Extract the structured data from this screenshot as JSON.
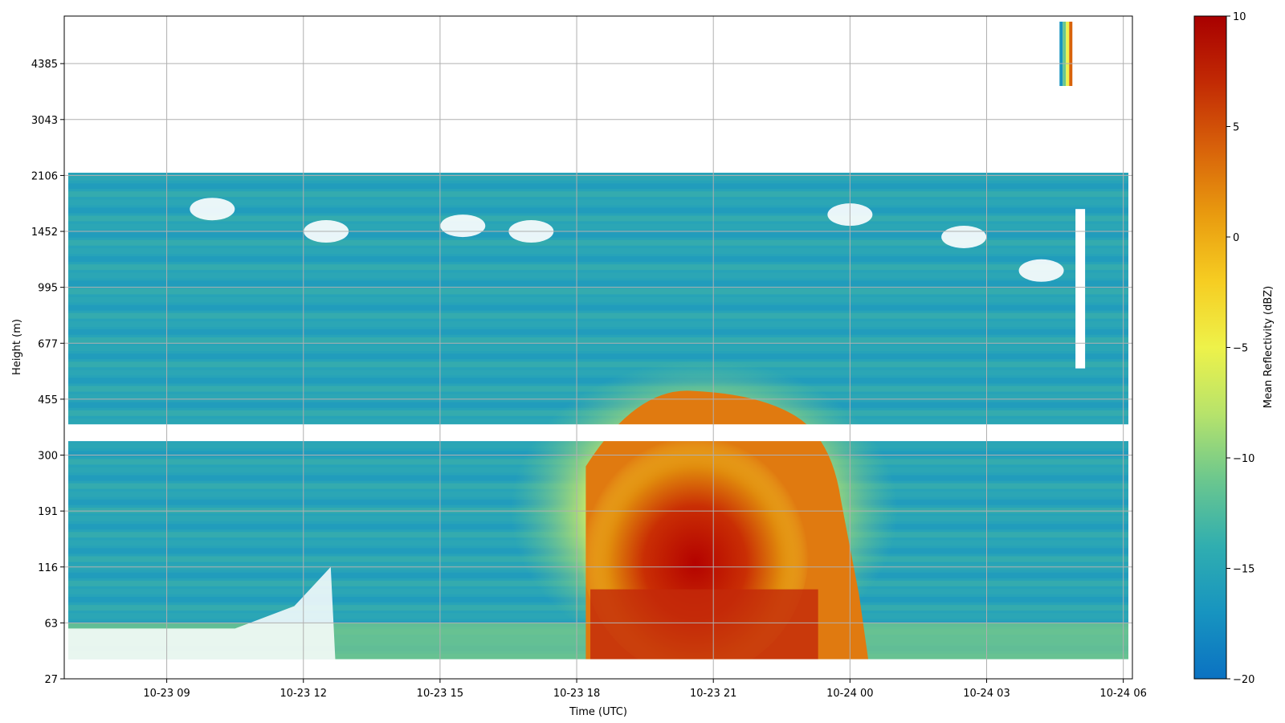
{
  "chart_data": {
    "type": "heatmap",
    "title": "",
    "xlabel": "Time (UTC)",
    "ylabel": "Height (m)",
    "x_ticks": [
      "10-23 09",
      "10-23 12",
      "10-23 15",
      "10-23 18",
      "10-23 21",
      "10-24 00",
      "10-24 03",
      "10-24 06"
    ],
    "y_ticks": [
      "27",
      "63",
      "116",
      "191",
      "300",
      "455",
      "677",
      "995",
      "1452",
      "2106",
      "3043",
      "4385"
    ],
    "x_range_hours": [
      6.75,
      30.2
    ],
    "y_range_index": [
      0,
      11.85
    ],
    "grid": true,
    "colorbar": {
      "label": "Mean Reflectivity (dBZ)",
      "min": -20,
      "max": 10,
      "ticks": [
        "10",
        "5",
        "0",
        "−5",
        "−10",
        "−15",
        "−20"
      ],
      "tick_values": [
        10,
        5,
        0,
        -5,
        -10,
        -15,
        -20
      ],
      "colors": [
        "#0b72c2",
        "#1794c0",
        "#30aeb0",
        "#6bc78e",
        "#b7e36b",
        "#eef24a",
        "#f6cd22",
        "#e99b0f",
        "#d8620a",
        "#c22a04",
        "#a80000"
      ]
    },
    "missing_band_y_index": [
      4.25,
      4.55
    ],
    "echo_core": {
      "time_range_hours": [
        18,
        23.5
      ],
      "peak_dbz": 9
    }
  }
}
